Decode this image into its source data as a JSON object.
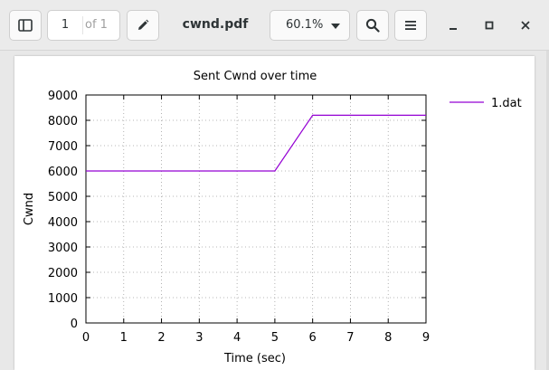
{
  "toolbar": {
    "sidebar_toggle_icon": "sidebar-icon",
    "page_current": "1",
    "page_total": "of 1",
    "annotate_icon": "pencil-icon",
    "document_title": "cwnd.pdf",
    "zoom_level": "60.1%",
    "search_icon": "search-icon",
    "menu_icon": "hamburger-menu-icon",
    "window_controls": [
      "minimize-icon",
      "maximize-icon",
      "close-icon"
    ]
  },
  "chart_data": {
    "type": "line",
    "title": "Sent Cwnd over time",
    "xlabel": "Time (sec)",
    "ylabel": "Cwnd",
    "xlim": [
      0,
      9
    ],
    "ylim": [
      0,
      9000
    ],
    "xticks": [
      "0",
      "1",
      "2",
      "3",
      "4",
      "5",
      "6",
      "7",
      "8",
      "9"
    ],
    "yticks": [
      "0",
      "1000",
      "2000",
      "3000",
      "4000",
      "5000",
      "6000",
      "7000",
      "8000",
      "9000"
    ],
    "grid": true,
    "legend_position": "outside-top-right",
    "series": [
      {
        "name": "1.dat",
        "color": "#9400d3",
        "x": [
          0,
          5,
          6,
          9
        ],
        "y": [
          6000,
          6000,
          8200,
          8200
        ]
      }
    ]
  }
}
